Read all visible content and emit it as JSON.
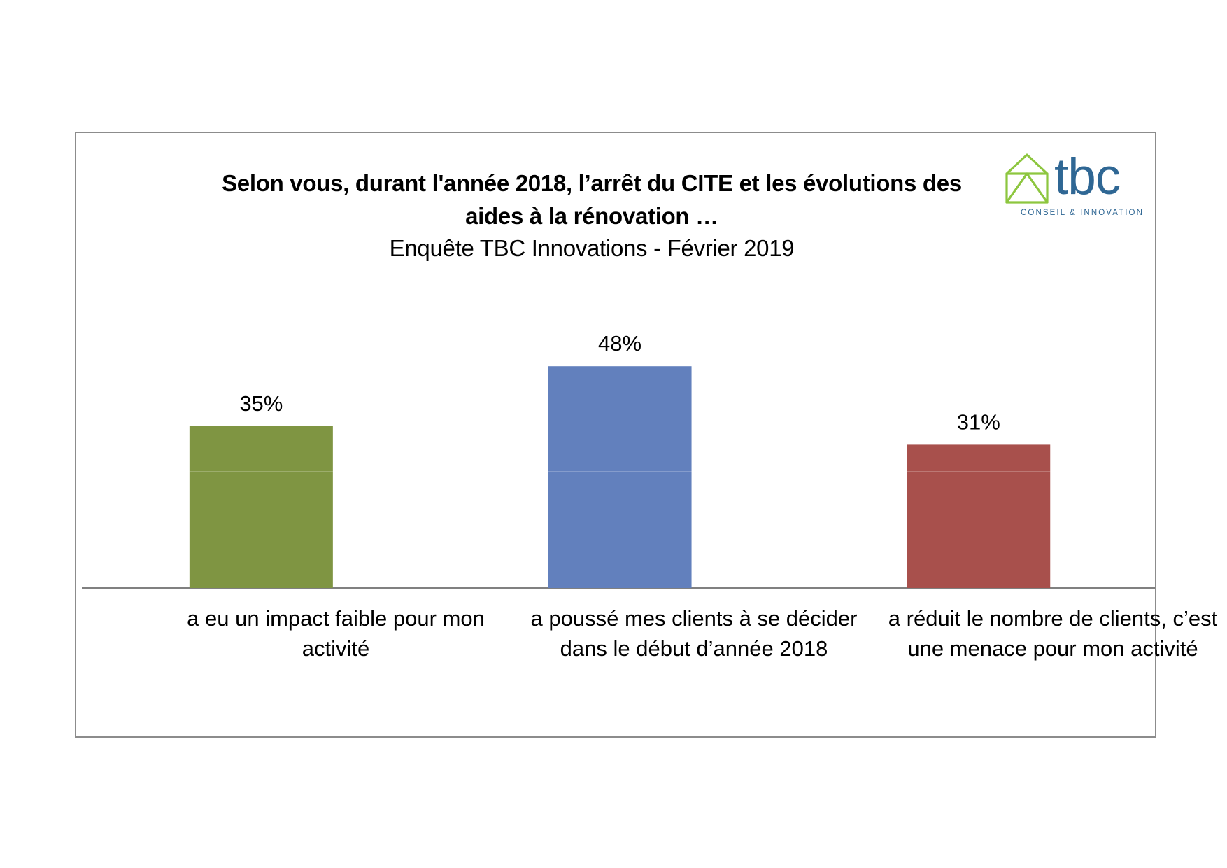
{
  "chart_data": {
    "type": "bar",
    "title": "Selon vous, durant l'année 2018, l’arrêt du CITE et les évolutions des aides à la rénovation  …",
    "subtitle": "Enquête TBC Innovations - Février 2019",
    "categories": [
      "a eu un impact faible pour mon activité",
      "a poussé mes clients à se décider dans le début d’année 2018",
      "a réduit le nombre de clients, c’est une menace pour mon activité"
    ],
    "values": [
      35,
      48,
      31
    ],
    "data_labels": [
      "35%",
      "48%",
      "31%"
    ],
    "bar_colors": [
      "#7f9542",
      "#6280bd",
      "#a8504c"
    ],
    "value_unit": "%",
    "ylim": [
      0,
      100
    ],
    "grid": false,
    "legend": "none",
    "xlabel": "",
    "ylabel": ""
  },
  "logo": {
    "wordmark": "tbc",
    "tagline": "CONSEIL & INNOVATION",
    "house_color": "#8dc63f",
    "text_color": "#2f6794"
  },
  "colors": {
    "frame_border": "#8c8c8c",
    "axis_line": "#808080",
    "background": "#ffffff"
  }
}
